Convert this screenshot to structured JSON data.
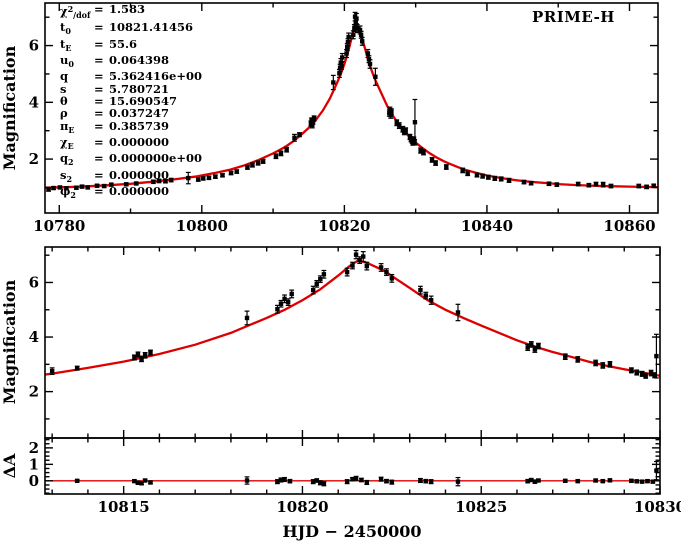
{
  "header": {
    "observatory": "PRIME-H"
  },
  "params": {
    "rows": [
      {
        "name": "χ^{2}_{/dof}",
        "value": "1.583"
      },
      {
        "name": "t_{0}",
        "value": "10821.41456"
      },
      {
        "name": "t_{E}",
        "value": "55.6"
      },
      {
        "name": "u_{0}",
        "value": "0.064398"
      },
      {
        "name": "q",
        "value": "5.362416e+00"
      },
      {
        "name": "s",
        "value": "5.780721"
      },
      {
        "name": "θ",
        "value": "15.690547"
      },
      {
        "name": "ρ",
        "value": "0.037247"
      },
      {
        "name": "π_{E}",
        "value": "0.385739"
      },
      {
        "name": "χ_{E}",
        "value": "0.000000"
      },
      {
        "name": "q_{2}",
        "value": "0.000000e+00"
      },
      {
        "name": "s_{2}",
        "value": "0.000000"
      },
      {
        "name": "φ_{2}",
        "value": "0.000000"
      }
    ]
  },
  "chart_data": {
    "type": "line",
    "title": "",
    "xlabel": "HJD − 2450000",
    "colors": {
      "model": "#dd0000",
      "data": "#000000",
      "frame": "#000000"
    },
    "panels": [
      {
        "id": "full",
        "ylabel": "Magnification",
        "xlim": [
          10778,
          10864
        ],
        "ylim": [
          0.1,
          7.5
        ],
        "xticks": {
          "major": [
            10780,
            10800,
            10820,
            10840,
            10860
          ],
          "minor": [
            10790,
            10810,
            10830,
            10850
          ],
          "labels": [
            "10780",
            "10800",
            "10820",
            "10840",
            "10860"
          ],
          "show_labels": true
        },
        "yticks": {
          "major": [
            2,
            4,
            6
          ],
          "minor": [
            1,
            3,
            5,
            7
          ],
          "labels": [
            "2",
            "4",
            "6"
          ]
        },
        "series": [
          "model_curve",
          "data_points"
        ]
      },
      {
        "id": "zoom",
        "ylabel": "Magnification",
        "xlim": [
          10812.8,
          10830
        ],
        "ylim": [
          0.3,
          7.3
        ],
        "xticks": {
          "major": [
            10815,
            10820,
            10825,
            10830
          ],
          "minor": [
            10813,
            10814,
            10816,
            10817,
            10818,
            10819,
            10821,
            10822,
            10823,
            10824,
            10826,
            10827,
            10828,
            10829
          ],
          "labels": [],
          "show_labels": false
        },
        "yticks": {
          "major": [
            2,
            4,
            6
          ],
          "minor": [
            1,
            3,
            5,
            7
          ],
          "labels": [
            "2",
            "4",
            "6"
          ]
        },
        "series": [
          "model_curve",
          "data_points"
        ]
      },
      {
        "id": "residuals",
        "ylabel": "ΔA",
        "xlim": [
          10812.8,
          10830
        ],
        "ylim": [
          -0.8,
          2.6
        ],
        "xticks": {
          "major": [
            10815,
            10820,
            10825,
            10830
          ],
          "minor": [
            10813,
            10814,
            10816,
            10817,
            10818,
            10819,
            10821,
            10822,
            10823,
            10824,
            10826,
            10827,
            10828,
            10829
          ],
          "labels": [
            "10815",
            "10820",
            "10825",
            "10830"
          ],
          "show_labels": true
        },
        "yticks": {
          "major": [
            0,
            1,
            2
          ],
          "minor": [
            -0.75,
            -0.5,
            -0.25,
            0.25,
            0.5,
            0.75,
            1.25,
            1.5,
            1.75,
            2.25,
            2.5
          ],
          "labels": [
            "0",
            "1",
            "2"
          ]
        },
        "zero_line": true,
        "series": [
          "residual_points"
        ]
      }
    ],
    "model_curve": [
      [
        10778,
        0.99
      ],
      [
        10781,
        1.01
      ],
      [
        10784,
        1.04
      ],
      [
        10787,
        1.08
      ],
      [
        10790,
        1.13
      ],
      [
        10793,
        1.2
      ],
      [
        10796,
        1.28
      ],
      [
        10799,
        1.38
      ],
      [
        10802,
        1.52
      ],
      [
        10804,
        1.63
      ],
      [
        10806,
        1.78
      ],
      [
        10808,
        1.97
      ],
      [
        10810,
        2.2
      ],
      [
        10811,
        2.33
      ],
      [
        10812,
        2.48
      ],
      [
        10813,
        2.66
      ],
      [
        10814,
        2.87
      ],
      [
        10815,
        3.1
      ],
      [
        10816,
        3.38
      ],
      [
        10817,
        3.72
      ],
      [
        10818,
        4.15
      ],
      [
        10819,
        4.7
      ],
      [
        10819.5,
        5.0
      ],
      [
        10820,
        5.35
      ],
      [
        10820.5,
        5.75
      ],
      [
        10821,
        6.25
      ],
      [
        10821.3,
        6.58
      ],
      [
        10821.55,
        6.8
      ],
      [
        10821.8,
        6.72
      ],
      [
        10822,
        6.6
      ],
      [
        10822.3,
        6.42
      ],
      [
        10822.6,
        6.15
      ],
      [
        10823,
        5.8
      ],
      [
        10823.5,
        5.35
      ],
      [
        10824,
        5.0
      ],
      [
        10824.5,
        4.7
      ],
      [
        10825,
        4.42
      ],
      [
        10825.5,
        4.15
      ],
      [
        10826,
        3.88
      ],
      [
        10826.5,
        3.65
      ],
      [
        10827,
        3.45
      ],
      [
        10827.5,
        3.28
      ],
      [
        10828,
        3.1
      ],
      [
        10828.5,
        2.95
      ],
      [
        10829,
        2.82
      ],
      [
        10829.5,
        2.7
      ],
      [
        10830,
        2.58
      ],
      [
        10831,
        2.38
      ],
      [
        10832,
        2.2
      ],
      [
        10833,
        2.05
      ],
      [
        10834,
        1.92
      ],
      [
        10835,
        1.81
      ],
      [
        10836,
        1.71
      ],
      [
        10837,
        1.62
      ],
      [
        10838,
        1.55
      ],
      [
        10839,
        1.48
      ],
      [
        10840,
        1.42
      ],
      [
        10842,
        1.33
      ],
      [
        10844,
        1.26
      ],
      [
        10846,
        1.2
      ],
      [
        10848,
        1.16
      ],
      [
        10850,
        1.12
      ],
      [
        10852,
        1.09
      ],
      [
        10854,
        1.07
      ],
      [
        10856,
        1.05
      ],
      [
        10858,
        1.04
      ],
      [
        10860,
        1.03
      ],
      [
        10862,
        1.02
      ],
      [
        10864,
        1.01
      ]
    ],
    "data_points": [
      [
        10778.5,
        0.93,
        0.06
      ],
      [
        10779.2,
        0.98,
        0.05
      ],
      [
        10780.1,
        1.0,
        0.05
      ],
      [
        10781.0,
        0.97,
        0.05
      ],
      [
        10782.4,
        0.99,
        0.05
      ],
      [
        10783.2,
        1.03,
        0.05
      ],
      [
        10784.0,
        1.0,
        0.05
      ],
      [
        10785.3,
        1.06,
        0.05
      ],
      [
        10786.3,
        1.05,
        0.05
      ],
      [
        10787.3,
        1.1,
        0.05
      ],
      [
        10789.4,
        1.11,
        0.05
      ],
      [
        10790.8,
        1.14,
        0.05
      ],
      [
        10793.2,
        1.2,
        0.06
      ],
      [
        10794.0,
        1.23,
        0.06
      ],
      [
        10794.9,
        1.22,
        0.06
      ],
      [
        10795.7,
        1.26,
        0.06
      ],
      [
        10798.1,
        1.33,
        0.2
      ],
      [
        10799.5,
        1.28,
        0.06
      ],
      [
        10800.2,
        1.32,
        0.06
      ],
      [
        10801.0,
        1.34,
        0.06
      ],
      [
        10801.9,
        1.38,
        0.06
      ],
      [
        10802.9,
        1.43,
        0.06
      ],
      [
        10804.1,
        1.51,
        0.06
      ],
      [
        10804.9,
        1.56,
        0.06
      ],
      [
        10806.4,
        1.71,
        0.07
      ],
      [
        10807.1,
        1.79,
        0.07
      ],
      [
        10807.9,
        1.86,
        0.07
      ],
      [
        10808.6,
        1.92,
        0.07
      ],
      [
        10810.4,
        2.1,
        0.08
      ],
      [
        10811.1,
        2.2,
        0.08
      ],
      [
        10811.9,
        2.33,
        0.08
      ],
      [
        10813.0,
        2.75,
        0.12
      ],
      [
        10813.7,
        2.86,
        0.07
      ],
      [
        10815.3,
        3.25,
        0.09
      ],
      [
        10815.4,
        3.36,
        0.09
      ],
      [
        10815.5,
        3.2,
        0.1
      ],
      [
        10815.6,
        3.33,
        0.1
      ],
      [
        10815.75,
        3.43,
        0.09
      ],
      [
        10818.45,
        4.7,
        0.25
      ],
      [
        10819.3,
        5.02,
        0.14
      ],
      [
        10819.4,
        5.22,
        0.12
      ],
      [
        10819.5,
        5.4,
        0.14
      ],
      [
        10819.6,
        5.28,
        0.12
      ],
      [
        10819.7,
        5.58,
        0.14
      ],
      [
        10820.3,
        5.72,
        0.14
      ],
      [
        10820.4,
        5.95,
        0.12
      ],
      [
        10820.5,
        6.12,
        0.12
      ],
      [
        10820.6,
        6.3,
        0.14
      ],
      [
        10821.25,
        6.38,
        0.14
      ],
      [
        10821.4,
        6.62,
        0.12
      ],
      [
        10821.5,
        7.02,
        0.15
      ],
      [
        10821.6,
        6.82,
        0.12
      ],
      [
        10821.7,
        6.95,
        0.18
      ],
      [
        10821.8,
        6.6,
        0.14
      ],
      [
        10822.2,
        6.55,
        0.14
      ],
      [
        10822.35,
        6.38,
        0.12
      ],
      [
        10822.5,
        6.15,
        0.14
      ],
      [
        10823.3,
        5.72,
        0.14
      ],
      [
        10823.45,
        5.52,
        0.12
      ],
      [
        10823.6,
        5.35,
        0.15
      ],
      [
        10824.35,
        4.9,
        0.3
      ],
      [
        10826.3,
        3.62,
        0.11
      ],
      [
        10826.4,
        3.73,
        0.1
      ],
      [
        10826.5,
        3.55,
        0.11
      ],
      [
        10826.6,
        3.67,
        0.1
      ],
      [
        10827.35,
        3.28,
        0.1
      ],
      [
        10827.7,
        3.18,
        0.1
      ],
      [
        10828.2,
        3.05,
        0.1
      ],
      [
        10828.4,
        2.96,
        0.1
      ],
      [
        10828.6,
        3.0,
        0.1
      ],
      [
        10829.2,
        2.78,
        0.09
      ],
      [
        10829.35,
        2.7,
        0.09
      ],
      [
        10829.5,
        2.65,
        0.09
      ],
      [
        10829.6,
        2.58,
        0.09
      ],
      [
        10829.75,
        2.68,
        0.1
      ],
      [
        10829.85,
        2.6,
        0.09
      ],
      [
        10829.9,
        3.3,
        0.8
      ],
      [
        10830.7,
        2.3,
        0.09
      ],
      [
        10831.1,
        2.24,
        0.09
      ],
      [
        10832.3,
        1.97,
        0.08
      ],
      [
        10832.8,
        1.86,
        0.08
      ],
      [
        10834.3,
        1.72,
        0.08
      ],
      [
        10836.6,
        1.6,
        0.08
      ],
      [
        10837.3,
        1.5,
        0.08
      ],
      [
        10838.6,
        1.44,
        0.07
      ],
      [
        10839.4,
        1.4,
        0.07
      ],
      [
        10840.2,
        1.36,
        0.07
      ],
      [
        10841.1,
        1.32,
        0.07
      ],
      [
        10842.0,
        1.3,
        0.07
      ],
      [
        10843.1,
        1.25,
        0.07
      ],
      [
        10845.2,
        1.19,
        0.06
      ],
      [
        10846.2,
        1.15,
        0.06
      ],
      [
        10848.7,
        1.13,
        0.06
      ],
      [
        10849.8,
        1.1,
        0.06
      ],
      [
        10852.8,
        1.12,
        0.06
      ],
      [
        10854.3,
        1.08,
        0.06
      ],
      [
        10855.3,
        1.12,
        0.06
      ],
      [
        10856.3,
        1.1,
        0.08
      ],
      [
        10857.4,
        1.05,
        0.06
      ],
      [
        10861.3,
        1.05,
        0.06
      ],
      [
        10862.4,
        1.02,
        0.06
      ],
      [
        10863.4,
        1.06,
        0.06
      ]
    ],
    "residual_points": [
      [
        10813.7,
        0.0,
        0.06
      ],
      [
        10815.3,
        -0.02,
        0.08
      ],
      [
        10815.4,
        -0.12,
        0.08
      ],
      [
        10815.5,
        -0.15,
        0.08
      ],
      [
        10815.6,
        0.02,
        0.08
      ],
      [
        10815.75,
        -0.1,
        0.08
      ],
      [
        10818.45,
        0.02,
        0.22
      ],
      [
        10819.3,
        -0.05,
        0.12
      ],
      [
        10819.4,
        0.05,
        0.12
      ],
      [
        10819.5,
        0.08,
        0.12
      ],
      [
        10819.65,
        -0.02,
        0.1
      ],
      [
        10820.3,
        -0.05,
        0.12
      ],
      [
        10820.4,
        0.02,
        0.1
      ],
      [
        10820.5,
        -0.12,
        0.12
      ],
      [
        10820.6,
        -0.18,
        0.12
      ],
      [
        10821.25,
        -0.05,
        0.12
      ],
      [
        10821.4,
        0.1,
        0.1
      ],
      [
        10821.5,
        0.15,
        0.12
      ],
      [
        10821.65,
        0.05,
        0.1
      ],
      [
        10821.8,
        -0.1,
        0.12
      ],
      [
        10822.2,
        0.1,
        0.12
      ],
      [
        10822.35,
        -0.02,
        0.1
      ],
      [
        10822.5,
        -0.08,
        0.12
      ],
      [
        10823.3,
        0.02,
        0.12
      ],
      [
        10823.45,
        -0.02,
        0.1
      ],
      [
        10823.6,
        -0.05,
        0.12
      ],
      [
        10824.35,
        -0.05,
        0.25
      ],
      [
        10826.3,
        -0.02,
        0.1
      ],
      [
        10826.4,
        0.05,
        0.08
      ],
      [
        10826.5,
        -0.05,
        0.1
      ],
      [
        10826.6,
        0.02,
        0.08
      ],
      [
        10827.35,
        0.0,
        0.08
      ],
      [
        10827.7,
        -0.02,
        0.08
      ],
      [
        10828.2,
        0.02,
        0.08
      ],
      [
        10828.4,
        -0.02,
        0.08
      ],
      [
        10828.6,
        0.03,
        0.08
      ],
      [
        10829.2,
        0.0,
        0.08
      ],
      [
        10829.35,
        -0.03,
        0.08
      ],
      [
        10829.5,
        -0.05,
        0.08
      ],
      [
        10829.65,
        -0.02,
        0.08
      ],
      [
        10829.8,
        -0.05,
        0.08
      ],
      [
        10829.9,
        0.62,
        0.55
      ]
    ]
  }
}
